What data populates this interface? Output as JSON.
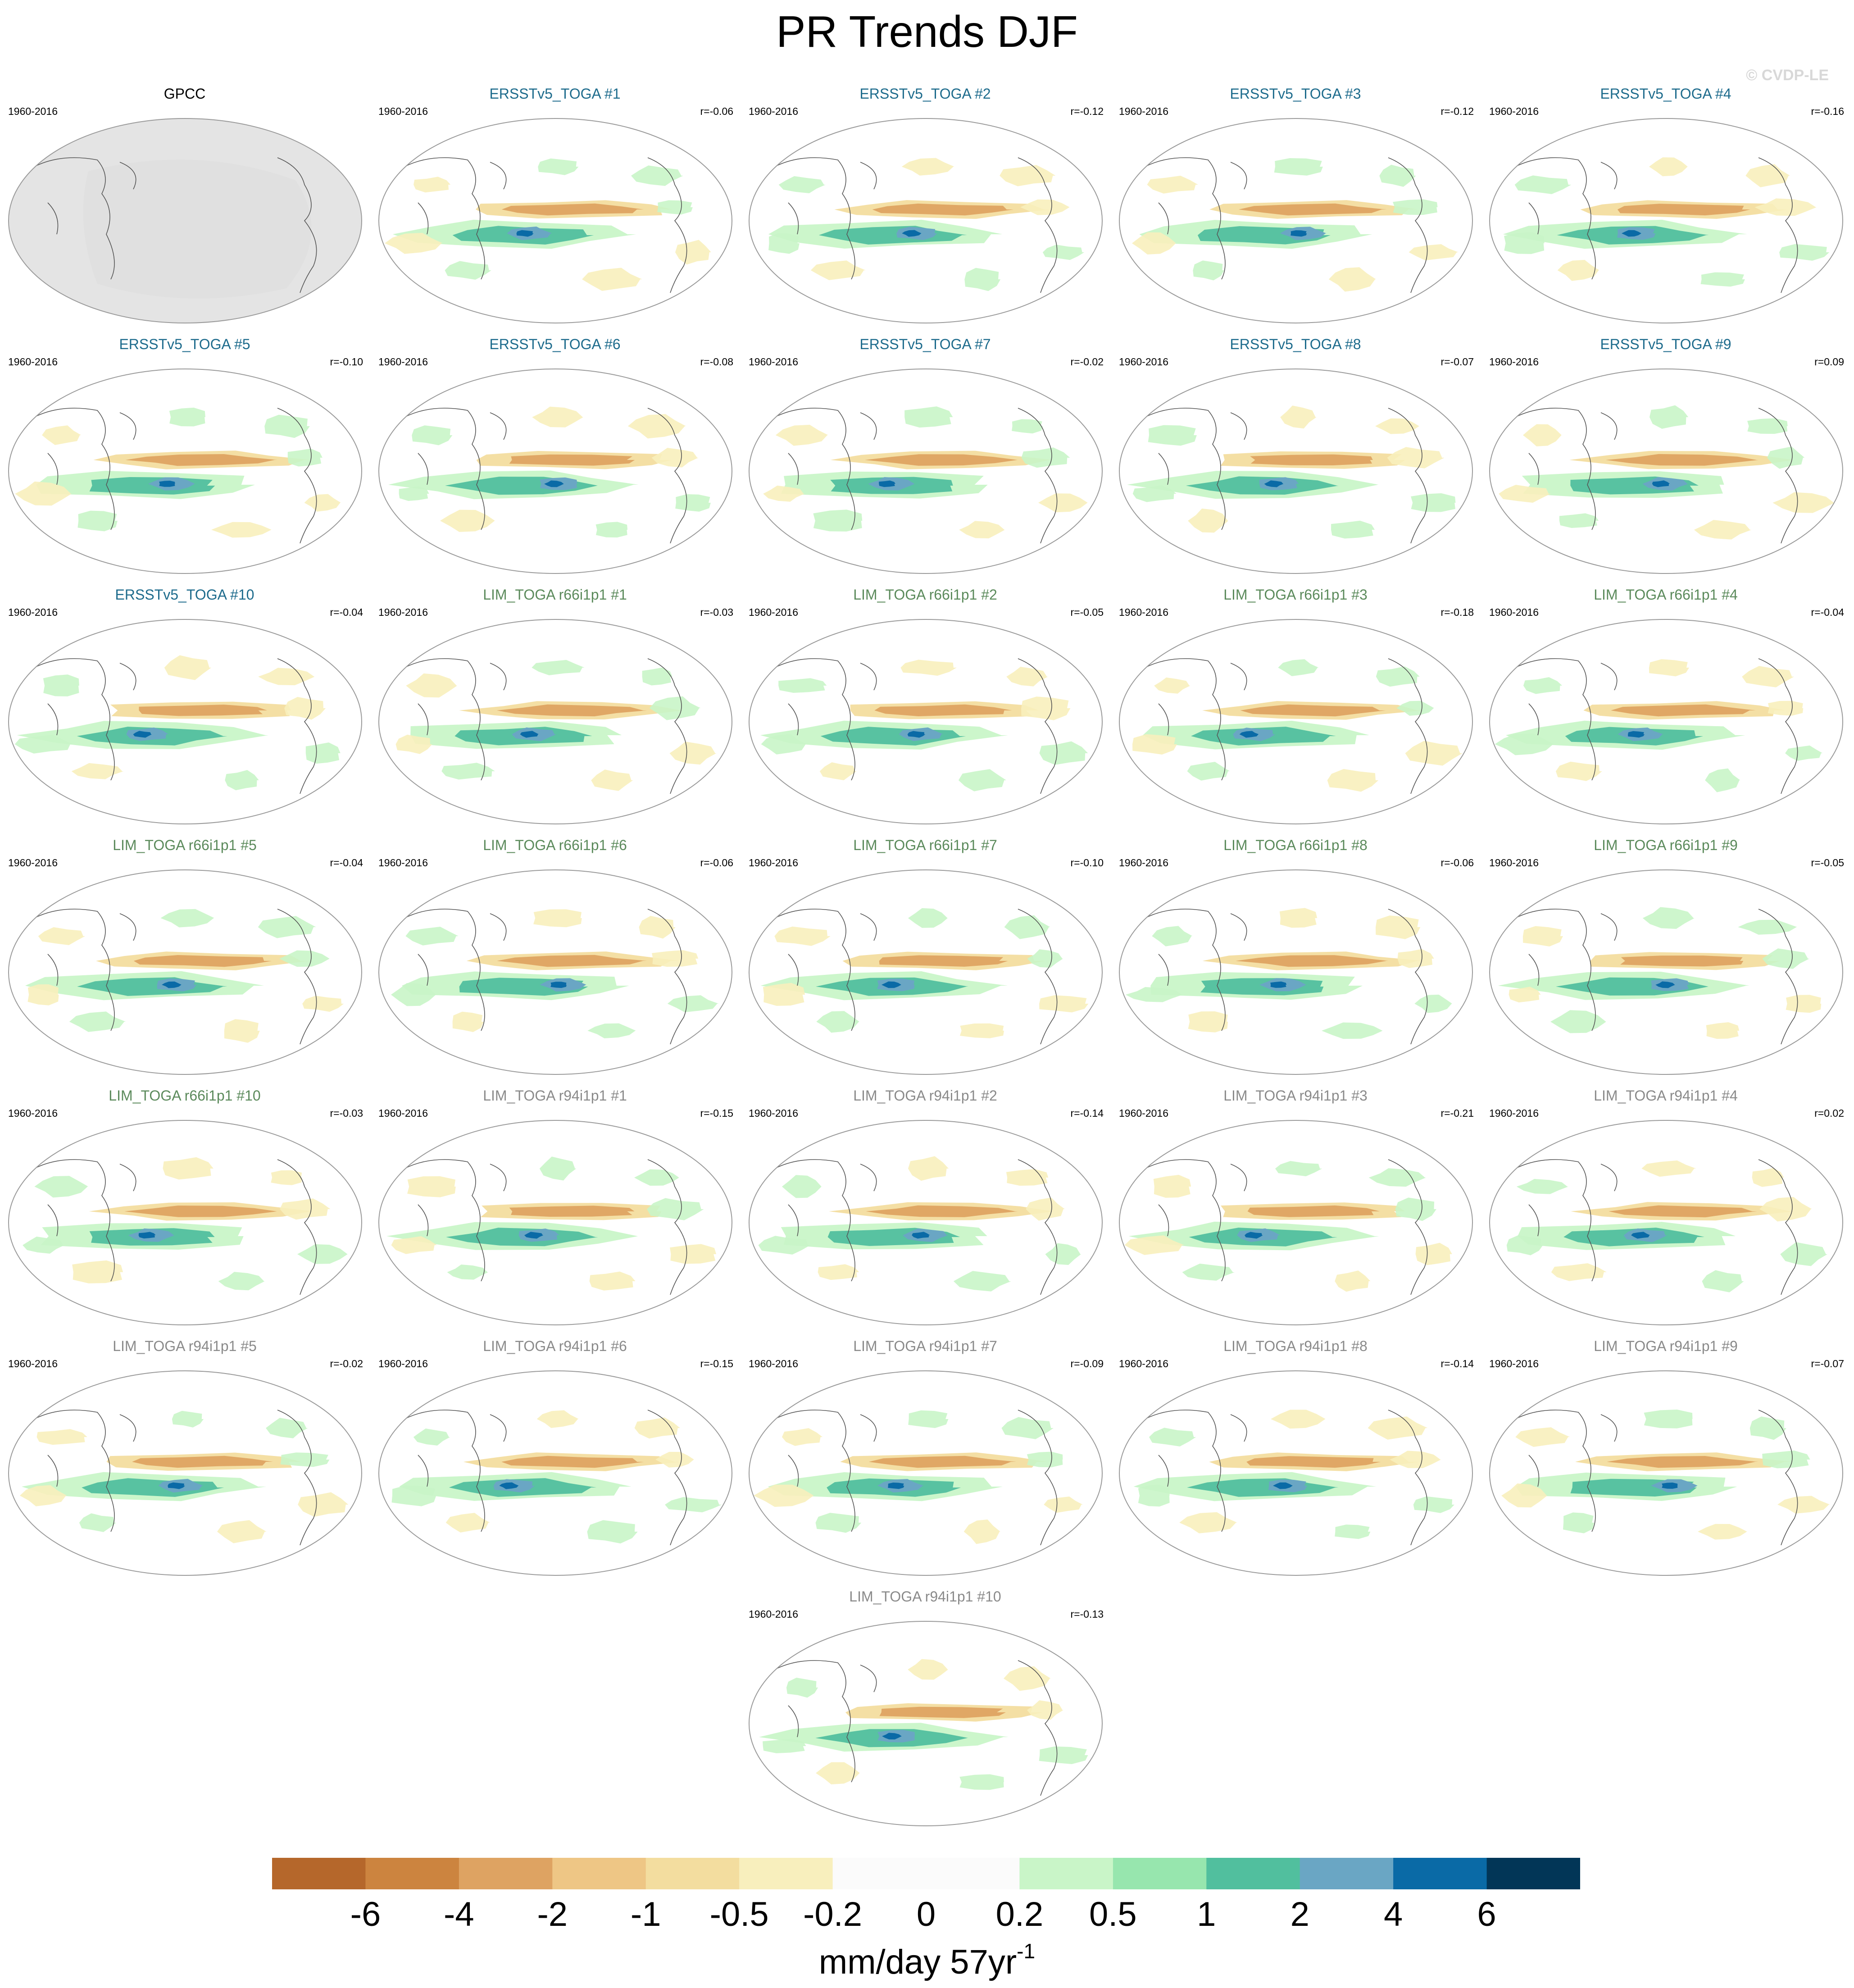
{
  "title": "PR Trends DJF",
  "copyright": "© CVDP-LE",
  "panels": [
    {
      "label": "GPCC",
      "years": "1960-2016",
      "r": "",
      "group": "obs"
    },
    {
      "label": "ERSSTv5_TOGA #1",
      "years": "1960-2016",
      "r": "r=-0.06",
      "group": "ersst"
    },
    {
      "label": "ERSSTv5_TOGA #2",
      "years": "1960-2016",
      "r": "r=-0.12",
      "group": "ersst"
    },
    {
      "label": "ERSSTv5_TOGA #3",
      "years": "1960-2016",
      "r": "r=-0.12",
      "group": "ersst"
    },
    {
      "label": "ERSSTv5_TOGA #4",
      "years": "1960-2016",
      "r": "r=-0.16",
      "group": "ersst"
    },
    {
      "label": "ERSSTv5_TOGA #5",
      "years": "1960-2016",
      "r": "r=-0.10",
      "group": "ersst"
    },
    {
      "label": "ERSSTv5_TOGA #6",
      "years": "1960-2016",
      "r": "r=-0.08",
      "group": "ersst"
    },
    {
      "label": "ERSSTv5_TOGA #7",
      "years": "1960-2016",
      "r": "r=-0.02",
      "group": "ersst"
    },
    {
      "label": "ERSSTv5_TOGA #8",
      "years": "1960-2016",
      "r": "r=-0.07",
      "group": "ersst"
    },
    {
      "label": "ERSSTv5_TOGA #9",
      "years": "1960-2016",
      "r": "r=0.09",
      "group": "ersst"
    },
    {
      "label": "ERSSTv5_TOGA #10",
      "years": "1960-2016",
      "r": "r=-0.04",
      "group": "ersst"
    },
    {
      "label": "LIM_TOGA r66i1p1 #1",
      "years": "1960-2016",
      "r": "r=-0.03",
      "group": "lim66"
    },
    {
      "label": "LIM_TOGA r66i1p1 #2",
      "years": "1960-2016",
      "r": "r=-0.05",
      "group": "lim66"
    },
    {
      "label": "LIM_TOGA r66i1p1 #3",
      "years": "1960-2016",
      "r": "r=-0.18",
      "group": "lim66"
    },
    {
      "label": "LIM_TOGA r66i1p1 #4",
      "years": "1960-2016",
      "r": "r=-0.04",
      "group": "lim66"
    },
    {
      "label": "LIM_TOGA r66i1p1 #5",
      "years": "1960-2016",
      "r": "r=-0.04",
      "group": "lim66"
    },
    {
      "label": "LIM_TOGA r66i1p1 #6",
      "years": "1960-2016",
      "r": "r=-0.06",
      "group": "lim66"
    },
    {
      "label": "LIM_TOGA r66i1p1 #7",
      "years": "1960-2016",
      "r": "r=-0.10",
      "group": "lim66"
    },
    {
      "label": "LIM_TOGA r66i1p1 #8",
      "years": "1960-2016",
      "r": "r=-0.06",
      "group": "lim66"
    },
    {
      "label": "LIM_TOGA r66i1p1 #9",
      "years": "1960-2016",
      "r": "r=-0.05",
      "group": "lim66"
    },
    {
      "label": "LIM_TOGA r66i1p1 #10",
      "years": "1960-2016",
      "r": "r=-0.03",
      "group": "lim66"
    },
    {
      "label": "LIM_TOGA r94i1p1 #1",
      "years": "1960-2016",
      "r": "r=-0.15",
      "group": "lim94"
    },
    {
      "label": "LIM_TOGA r94i1p1 #2",
      "years": "1960-2016",
      "r": "r=-0.14",
      "group": "lim94"
    },
    {
      "label": "LIM_TOGA r94i1p1 #3",
      "years": "1960-2016",
      "r": "r=-0.21",
      "group": "lim94"
    },
    {
      "label": "LIM_TOGA r94i1p1 #4",
      "years": "1960-2016",
      "r": "r=0.02",
      "group": "lim94"
    },
    {
      "label": "LIM_TOGA r94i1p1 #5",
      "years": "1960-2016",
      "r": "r=-0.02",
      "group": "lim94"
    },
    {
      "label": "LIM_TOGA r94i1p1 #6",
      "years": "1960-2016",
      "r": "r=-0.15",
      "group": "lim94"
    },
    {
      "label": "LIM_TOGA r94i1p1 #7",
      "years": "1960-2016",
      "r": "r=-0.09",
      "group": "lim94"
    },
    {
      "label": "LIM_TOGA r94i1p1 #8",
      "years": "1960-2016",
      "r": "r=-0.14",
      "group": "lim94"
    },
    {
      "label": "LIM_TOGA r94i1p1 #9",
      "years": "1960-2016",
      "r": "r=-0.07",
      "group": "lim94"
    },
    {
      "label": "LIM_TOGA r94i1p1 #10",
      "years": "1960-2016",
      "r": "r=-0.13",
      "group": "lim94"
    }
  ],
  "group_colors": {
    "obs": "#000000",
    "ersst": "#1d6b8c",
    "lim66": "#5b8a5b",
    "lim94": "#8a8a8a"
  },
  "map_colors": {
    "land_obs": "#e4e4e4",
    "ocean": "#ffffff",
    "outline": "#9a9a9a",
    "coast": "#555555"
  },
  "colorbar": {
    "colors": [
      "#b5672b",
      "#cc843f",
      "#dea362",
      "#eec685",
      "#f3dd9f",
      "#f8efbd",
      "#fbfbfb",
      "#fbfbfb",
      "#c9f5c8",
      "#97e6ae",
      "#51bf9e",
      "#6aa6c4",
      "#0a6aa6",
      "#023657"
    ],
    "labels": [
      "-6",
      "-4",
      "-2",
      "-1",
      "-0.5",
      "-0.2",
      "0",
      "0.2",
      "0.5",
      "1",
      "2",
      "4",
      "6"
    ],
    "units_main": "mm/day 57yr",
    "units_sup": "-1"
  }
}
